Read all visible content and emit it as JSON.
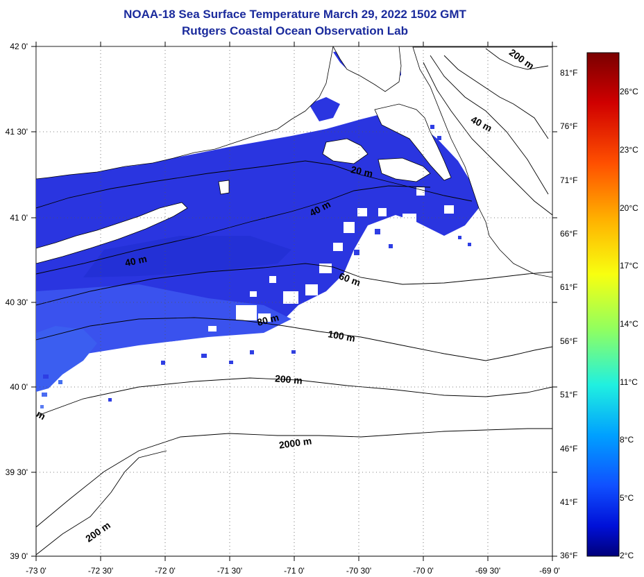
{
  "title": "NOAA-18 Sea Surface Temperature March 29, 2022 1502 GMT",
  "subtitle": "Rutgers Coastal Ocean Observation Lab",
  "map": {
    "lat_labels": [
      "42 0'",
      "41 30'",
      "41 0'",
      "40 30'",
      "40 0'",
      "39 30'",
      "39 0'"
    ],
    "lon_labels": [
      "-73 0'",
      "-72 30'",
      "-72 0'",
      "-71 30'",
      "-71 0'",
      "-70 30'",
      "-70 0'",
      "-69 30'",
      "-69 0'"
    ],
    "isobath_labels": [
      "200 m",
      "40 m",
      "20 m",
      "40 m",
      "40 m",
      "60 m",
      "80 m",
      "100 m",
      "200 m",
      "2000 m",
      "200 m",
      "m"
    ],
    "colors": {
      "land": "#ffffff",
      "ocean_sst": "#2a35e0",
      "ocean_sst_light": "#3c5cf0",
      "isobath": "#000000",
      "title": "#1a2a9c"
    }
  },
  "colorbar": {
    "fahrenheit_labels": [
      "81°F",
      "76°F",
      "71°F",
      "66°F",
      "61°F",
      "56°F",
      "51°F",
      "46°F",
      "41°F",
      "36°F"
    ],
    "celsius_labels": [
      "26°C",
      "23°C",
      "20°C",
      "17°C",
      "14°C",
      "11°C",
      "8°C",
      "5°C",
      "2°C"
    ],
    "range_celsius": [
      2,
      28
    ],
    "gradient_colors": [
      "#7a0000",
      "#e01000",
      "#ff7a00",
      "#ffee00",
      "#a8ff40",
      "#20ffd0",
      "#00a8ff",
      "#1060ff",
      "#0010d8",
      "#00008a"
    ]
  }
}
